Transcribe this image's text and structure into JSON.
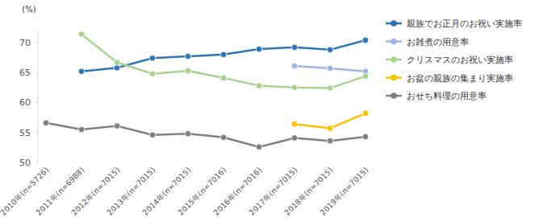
{
  "chart_data": {
    "type": "line",
    "y_label": "(%)",
    "categories": [
      "2010年(n=5726)",
      "2011年(n=6988)",
      "2012年(n=7015)",
      "2013年(n=7015)",
      "2014年(n=7015)",
      "2015年(n=7016)",
      "2016年(n=7016)",
      "2017年(n=7015)",
      "2018年(n=7015)",
      "2019年(n=7015)"
    ],
    "series": [
      {
        "name": "親族でお正月のお祝い実施率",
        "color": "#2e75b6",
        "marker": "circle",
        "values": [
          null,
          65.2,
          65.8,
          67.4,
          67.7,
          68.0,
          68.9,
          69.2,
          68.8,
          70.4
        ]
      },
      {
        "name": "お雑煮の用意率",
        "color": "#9fb4e0",
        "marker": "circle",
        "values": [
          null,
          null,
          null,
          null,
          null,
          null,
          null,
          66.1,
          65.7,
          65.2
        ]
      },
      {
        "name": "クリスマスのお祝い実施率",
        "color": "#a9d18e",
        "marker": "circle",
        "values": [
          null,
          71.4,
          66.7,
          64.8,
          65.3,
          64.1,
          62.8,
          62.5,
          62.4,
          64.4
        ]
      },
      {
        "name": "お盆の親族の集まり実施率",
        "color": "#ffc000",
        "marker": "circle",
        "values": [
          null,
          null,
          null,
          null,
          null,
          null,
          null,
          56.4,
          55.7,
          58.2
        ]
      },
      {
        "name": "おせち料理の用意率",
        "color": "#7f7f7f",
        "marker": "circle",
        "values": [
          56.6,
          55.5,
          56.1,
          54.6,
          54.8,
          54.2,
          52.6,
          54.1,
          53.6,
          54.3
        ]
      }
    ],
    "ylim": [
      50,
      72
    ],
    "yticks": [
      50,
      55,
      60,
      65,
      70
    ],
    "grid": false,
    "legend": "right"
  }
}
